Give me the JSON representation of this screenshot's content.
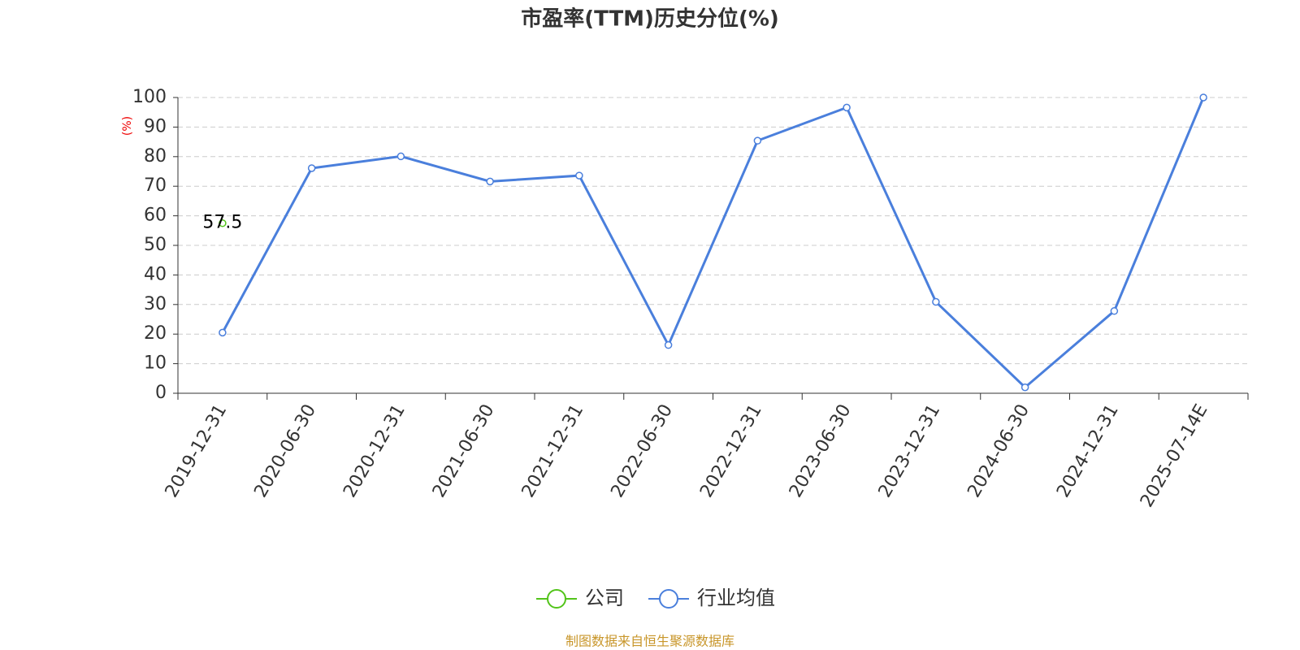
{
  "chart_data": {
    "type": "line",
    "title": "市盈率(TTM)历史分位(%)",
    "y_label": "(%)",
    "source": "制图数据来自恒生聚源数据库",
    "categories": [
      "2019-12-31",
      "2020-06-30",
      "2020-12-31",
      "2021-06-30",
      "2021-12-31",
      "2022-06-30",
      "2022-12-31",
      "2023-06-30",
      "2023-12-31",
      "2024-06-30",
      "2024-12-31",
      "2025-07-14E"
    ],
    "series": [
      {
        "name": "公司",
        "color": "#52c41a",
        "values": [
          57.5,
          null,
          null,
          null,
          null,
          null,
          null,
          null,
          null,
          null,
          null,
          null
        ]
      },
      {
        "name": "行业均值",
        "color": "#4a7fdc",
        "values": [
          20.5,
          76.1,
          80.1,
          71.6,
          73.6,
          16.3,
          85.4,
          96.6,
          30.9,
          2.0,
          27.8,
          100
        ]
      }
    ],
    "ylim": [
      0,
      100
    ],
    "yticks": [
      0,
      10,
      20,
      30,
      40,
      50,
      60,
      70,
      80,
      90,
      100
    ],
    "grid": true
  }
}
